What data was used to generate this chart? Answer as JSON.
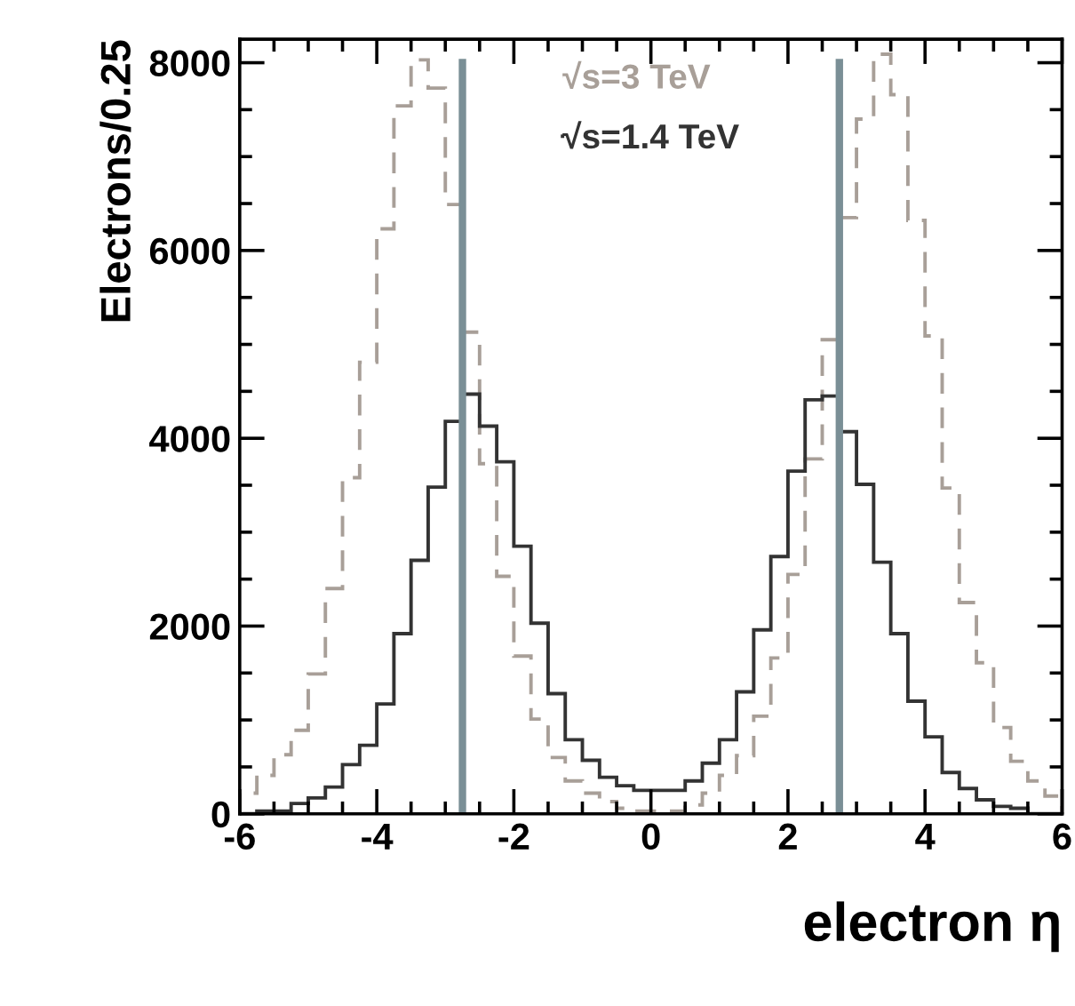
{
  "chart_data": {
    "type": "histogram",
    "xlabel": "electron η",
    "ylabel": "Electrons/0.25",
    "bins": [
      -6,
      -5.75,
      -5.5,
      -5.25,
      -5,
      -4.75,
      -4.5,
      -4.25,
      -4,
      -3.75,
      -3.5,
      -3.25,
      -3,
      -2.75,
      -2.5,
      -2.25,
      -2,
      -1.75,
      -1.5,
      -1.25,
      -1,
      -0.75,
      -0.5,
      -0.25,
      0,
      0.25,
      0.5,
      0.75,
      1,
      1.25,
      1.5,
      1.75,
      2,
      2.25,
      2.5,
      2.75,
      3,
      3.25,
      3.5,
      3.75,
      4,
      4.25,
      4.5,
      4.75,
      5,
      5.25,
      5.5,
      5.75,
      6
    ],
    "series": [
      {
        "name": "√s=3 TeV",
        "color": "#a89f98",
        "line_style": "dashed",
        "values": [
          220,
          410,
          630,
          890,
          1490,
          2400,
          3580,
          4810,
          6230,
          7540,
          8030,
          7730,
          6490,
          5130,
          3730,
          2530,
          1680,
          1010,
          600,
          350,
          220,
          130,
          60,
          30,
          30,
          30,
          95,
          220,
          410,
          620,
          1040,
          1660,
          2550,
          3780,
          5050,
          6350,
          7400,
          8090,
          7660,
          6320,
          5090,
          3470,
          2250,
          1610,
          920,
          560,
          350,
          190
        ]
      },
      {
        "name": "√s=1.4 TeV",
        "color": "#333333",
        "line_style": "solid",
        "values": [
          0,
          30,
          30,
          110,
          170,
          285,
          525,
          730,
          1170,
          1920,
          2700,
          3480,
          4180,
          4470,
          4130,
          3750,
          2850,
          2030,
          1280,
          790,
          570,
          390,
          300,
          250,
          250,
          250,
          350,
          540,
          790,
          1300,
          1960,
          2740,
          3650,
          4410,
          4450,
          4070,
          3510,
          2680,
          1920,
          1200,
          820,
          440,
          270,
          150,
          80,
          60,
          0,
          0
        ]
      }
    ],
    "ref_lines": [
      {
        "axis": "x",
        "value": -2.75,
        "color": "#7a8f96"
      },
      {
        "axis": "x",
        "value": 2.75,
        "color": "#7a8f96"
      }
    ],
    "xlim": [
      -6,
      6
    ],
    "xticks": [
      -6,
      -4,
      -2,
      0,
      2,
      4,
      6
    ],
    "ylim": [
      0,
      8250
    ],
    "yticks": [
      0,
      2000,
      4000,
      6000,
      8000
    ],
    "grid": false,
    "legend": "top"
  }
}
